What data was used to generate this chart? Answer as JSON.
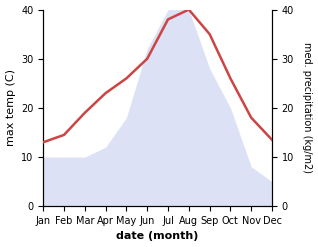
{
  "months": [
    "Jan",
    "Feb",
    "Mar",
    "Apr",
    "May",
    "Jun",
    "Jul",
    "Aug",
    "Sep",
    "Oct",
    "Nov",
    "Dec"
  ],
  "month_indices": [
    1,
    2,
    3,
    4,
    5,
    6,
    7,
    8,
    9,
    10,
    11,
    12
  ],
  "max_temp": [
    13,
    14.5,
    19,
    23,
    26,
    30,
    38,
    40,
    35,
    26,
    18,
    13.5
  ],
  "precipitation": [
    10,
    10,
    10,
    12,
    18,
    32,
    40,
    40,
    28,
    20,
    8,
    5
  ],
  "temp_color": "#cc4444",
  "precip_fill_color": "#c5cef0",
  "background_color": "#ffffff",
  "ylabel_left": "max temp (C)",
  "ylabel_right": "med. precipitation (kg/m2)",
  "xlabel": "date (month)",
  "ylim_left": [
    0,
    40
  ],
  "ylim_right": [
    0,
    40
  ],
  "label_fontsize": 8,
  "tick_fontsize": 7
}
